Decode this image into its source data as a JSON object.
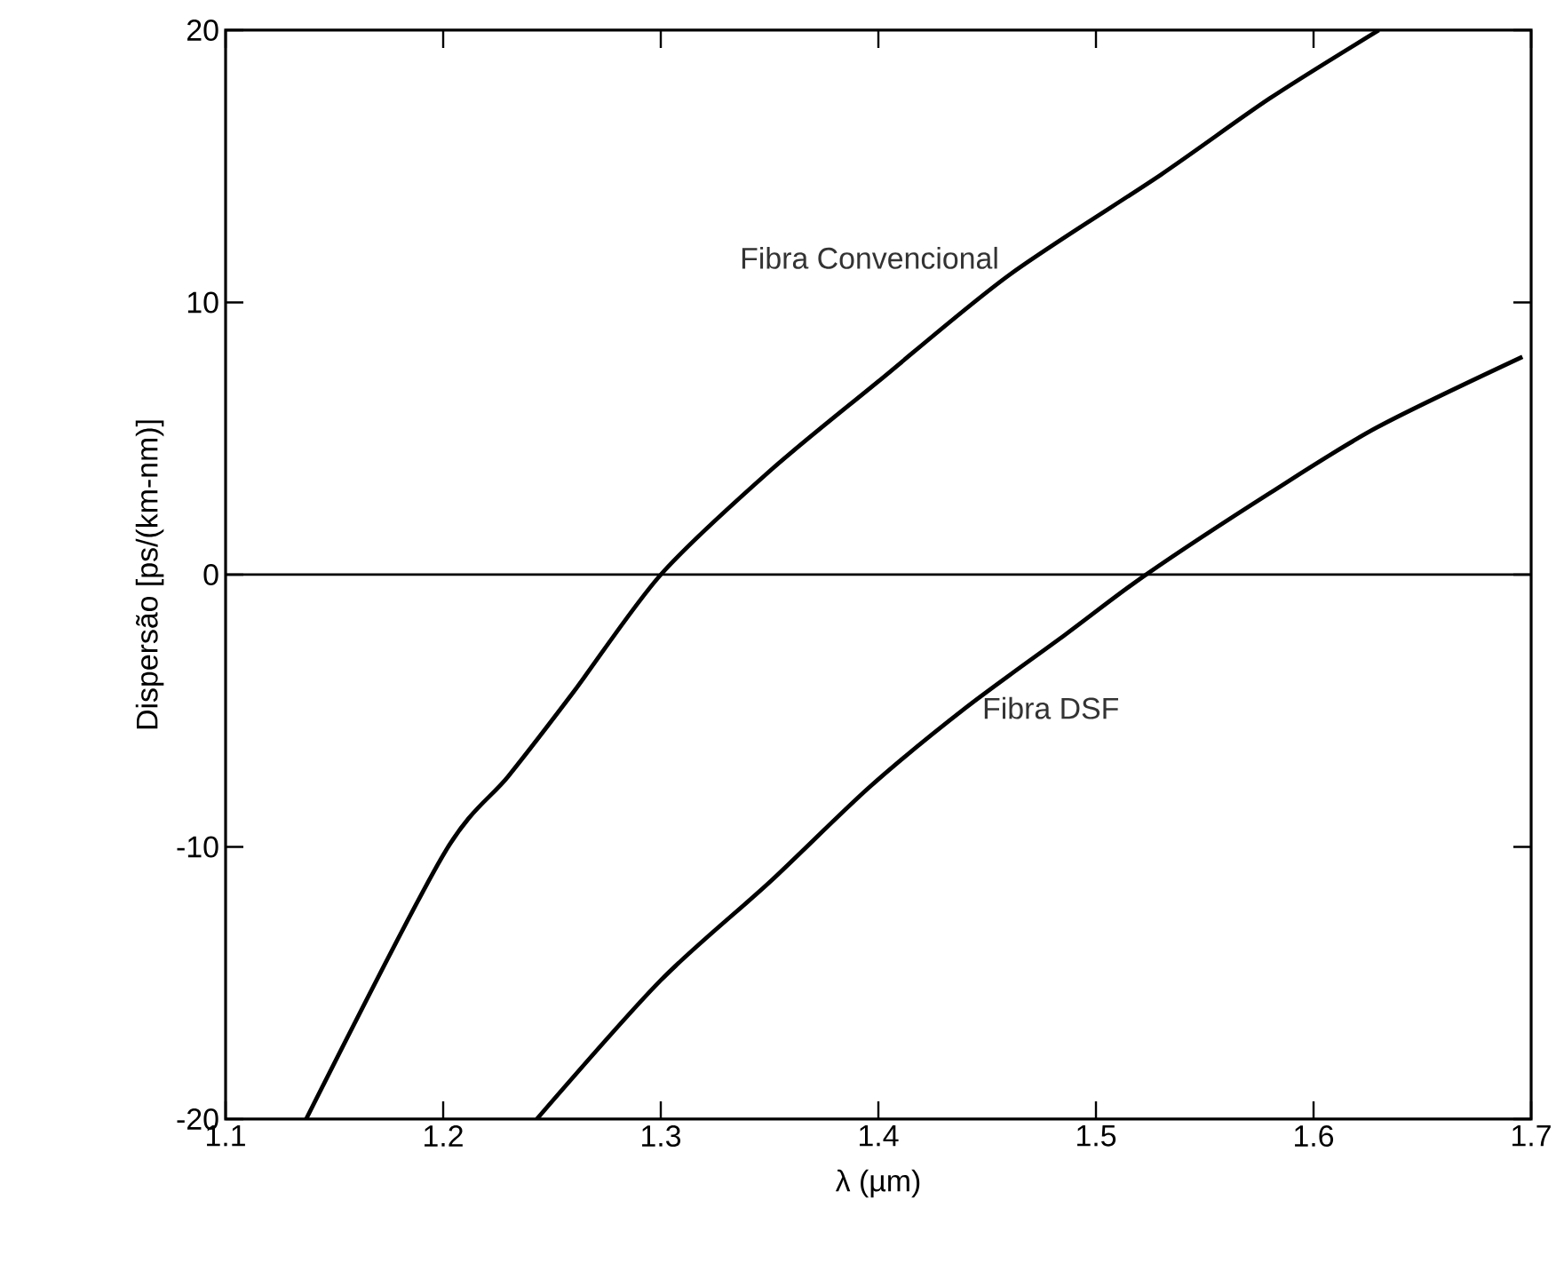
{
  "chart_data": {
    "type": "line",
    "xlabel": "λ (µm)",
    "ylabel": "Dispersão [ps/(km-nm)]",
    "xlim": [
      1.1,
      1.7
    ],
    "ylim": [
      -20,
      20
    ],
    "xticks": [
      1.1,
      1.2,
      1.3,
      1.4,
      1.5,
      1.6,
      1.7
    ],
    "yticks": [
      -20,
      -10,
      0,
      10,
      20
    ],
    "grid": false,
    "legend": false,
    "marker": "none",
    "line_style": "solid",
    "ref_lines": [
      {
        "axis": "y",
        "value": 0,
        "color": "#000000"
      }
    ],
    "series": [
      {
        "name": "Fibra Convencional",
        "color": "#000000",
        "x": [
          1.137,
          1.2,
          1.23,
          1.26,
          1.3,
          1.35,
          1.4,
          1.46,
          1.53,
          1.58,
          1.63
        ],
        "values": [
          -20,
          -10.3,
          -7.4,
          -4.3,
          0,
          3.8,
          7.1,
          11.0,
          14.7,
          17.5,
          20
        ]
      },
      {
        "name": "Fibra DSF",
        "color": "#000000",
        "x": [
          1.243,
          1.3,
          1.35,
          1.396,
          1.44,
          1.486,
          1.523,
          1.58,
          1.629,
          1.696
        ],
        "values": [
          -20,
          -14.9,
          -11.3,
          -7.8,
          -4.9,
          -2.2,
          0,
          3.0,
          5.4,
          8.0
        ]
      }
    ]
  }
}
